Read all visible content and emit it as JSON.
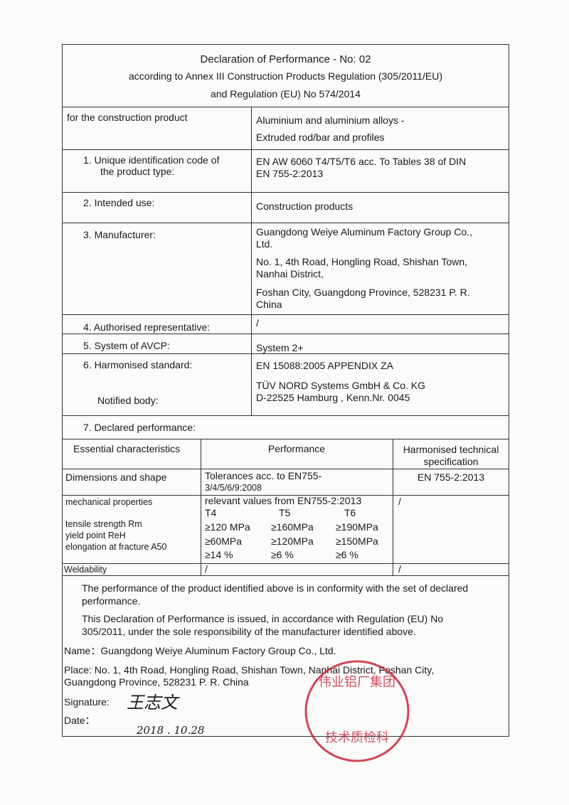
{
  "header": {
    "title": "Declaration of Performance - No: 02",
    "line2": "according to Annex III Construction Products Regulation (305/2011/EU)",
    "line3": "and Regulation (EU) No 574/2014"
  },
  "product": {
    "label": "for the construction product",
    "value1": "Aluminium and aluminium alloys -",
    "value2": "Extruded rod/bar and profiles"
  },
  "rows": [
    {
      "label1": "1.  Unique identification code of",
      "label2": "the product type:",
      "value1": "EN AW 6060 T4/T5/T6  acc. To Tables 38 of DIN",
      "value2": "EN 755-2:2013"
    },
    {
      "label": "2.  Intended use:",
      "value": "Construction products"
    },
    {
      "label": "3.  Manufacturer:",
      "value1": "Guangdong Weiye Aluminum Factory Group Co.,",
      "value2": "Ltd.",
      "value3": "No. 1, 4th Road, Hongling Road, Shishan Town,",
      "value4": "Nanhai District,",
      "value5": "Foshan City, Guangdong Province, 528231 P. R.",
      "value6": "China"
    },
    {
      "label": "4.  Authorised representative:",
      "value": "/"
    },
    {
      "label": "5.  System of AVCP:",
      "value": "System 2+"
    },
    {
      "label": "6.  Harmonised standard:",
      "value": "EN 15088:2005 APPENDIX ZA",
      "label2": "Notified body:",
      "value2": "TÜV NORD Systems GmbH & Co. KG",
      "value3": "D-22525 Hamburg , Kenn.Nr.  0045"
    }
  ],
  "declared": {
    "title": "7. Declared performance:",
    "headers": [
      "Essential characteristics",
      "Performance",
      "Harmonised technical",
      "specification"
    ],
    "dimensions": {
      "char": "Dimensions and shape",
      "perf1": "Tolerances acc. to   EN755-",
      "perf2": "3/4/5/6/9:2008",
      "spec": "EN 755-2:2013"
    },
    "mechanical": {
      "char": "mechanical properties",
      "props": [
        "tensile strength Rm",
        "yield point ReH",
        "elongation at fracture A50"
      ],
      "perf": "relevant values from EN755-2:2013",
      "tempers": [
        "T4",
        "T5",
        "T6"
      ],
      "values": [
        [
          "≥120 MPa",
          "≥160MPa",
          "≥190MPa"
        ],
        [
          "≥60MPa",
          "≥120MPa",
          "≥150MPa"
        ],
        [
          "≥14 %",
          "≥6 %",
          "≥6 %"
        ]
      ],
      "spec": "/"
    },
    "weldability": {
      "char": "Weldability",
      "perf": "/",
      "spec": "/"
    }
  },
  "footer": {
    "conformity1": "The performance of the product identified above is in conformity with the set of declared",
    "conformity2": "performance.",
    "issued1": "This Declaration of Performance is issued, in accordance with Regulation (EU) No",
    "issued2": "305/2011, under the sole responsibility of the manufacturer identified above.",
    "name": "Name：Guangdong Weiye Aluminum Factory Group Co., Ltd.",
    "place1": "Place: No. 1, 4th Road, Hongling Road, Shishan Town, Nanhai District, Foshan City,",
    "place2": "Guangdong Province, 528231 P. R. China",
    "signature_label": "Signature:",
    "signature": "王志文",
    "date_label": "Date：",
    "date": "2018 . 10.28"
  },
  "stamp": {
    "text": "广东伟业铝厂集团有限公司 技术质检科",
    "color": "#c8283a"
  }
}
